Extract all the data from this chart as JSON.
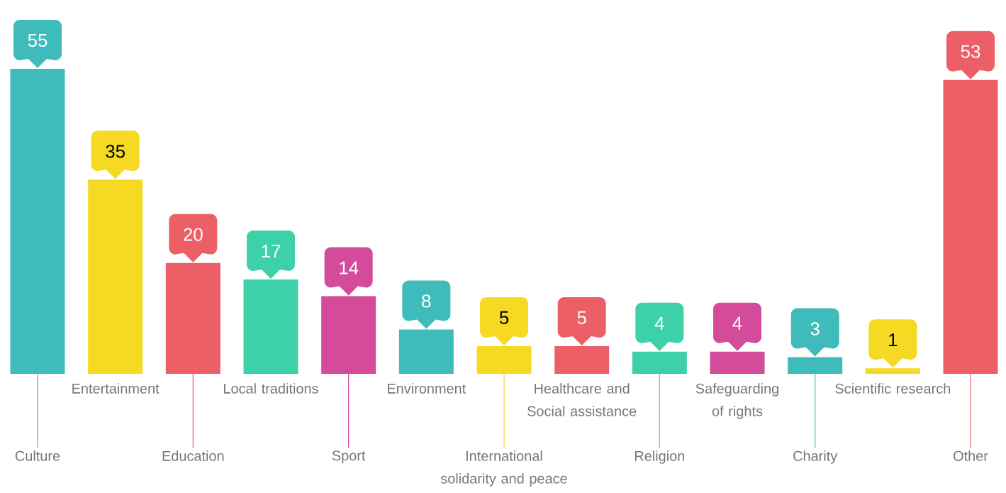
{
  "chart_data": {
    "type": "bar",
    "categories": [
      "Culture",
      "Entertainment",
      "Education",
      "Local traditions",
      "Sport",
      "Environment",
      "International solidarity and peace",
      "Healthcare and Social assistance",
      "Religion",
      "Safeguarding of rights",
      "Charity",
      "Scientific research",
      "Other"
    ],
    "values": [
      55,
      35,
      20,
      17,
      14,
      8,
      5,
      5,
      4,
      4,
      3,
      1,
      53
    ],
    "colors": [
      "#40bbbb",
      "#f5d922",
      "#ec5f67",
      "#3ed0a8",
      "#d44b9b",
      "#40bbbb",
      "#f5d922",
      "#ec5f67",
      "#3ed0a8",
      "#d44b9b",
      "#40bbbb",
      "#f5d922",
      "#ec5f67"
    ],
    "data_labels": true
  }
}
